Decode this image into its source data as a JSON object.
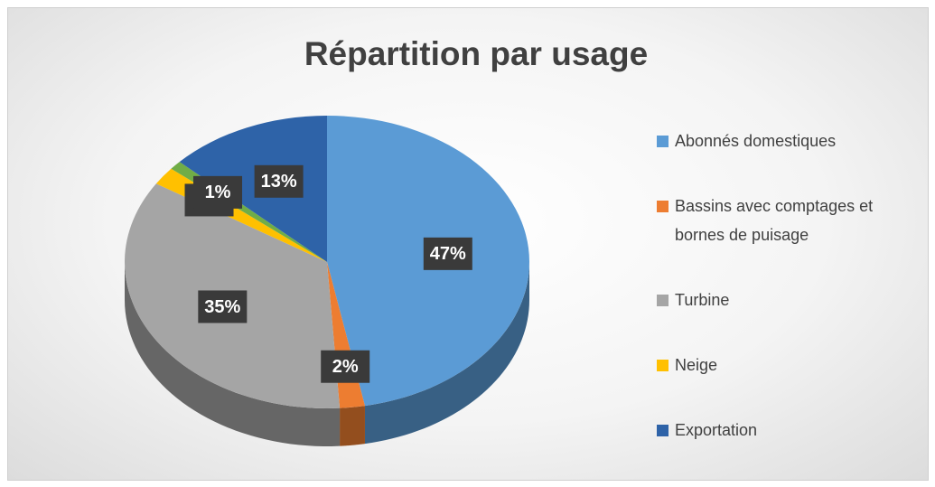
{
  "chart_data": {
    "type": "pie",
    "title": "Répartition par usage",
    "categories": [
      "Abonnés domestiques",
      "Bassins avec comptages et bornes de puisage",
      "Turbine",
      "Neige",
      null,
      "Exportation"
    ],
    "values": [
      47,
      2,
      35,
      2,
      1,
      13
    ],
    "value_labels": [
      "47%",
      "2%",
      "35%",
      "2%",
      "1%",
      "13%"
    ],
    "colors": [
      "#5b9bd5",
      "#ed7d31",
      "#a5a5a5",
      "#ffc000",
      "#70ad47",
      "#2e63a8"
    ],
    "legend": "right"
  }
}
